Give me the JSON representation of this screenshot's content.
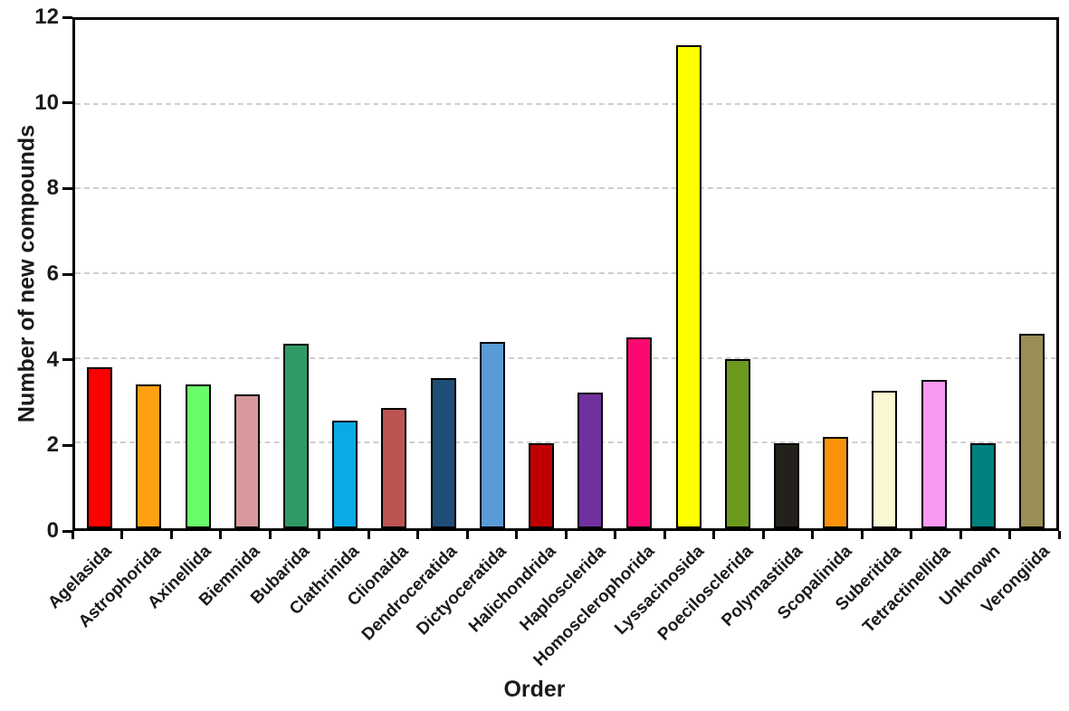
{
  "chart_data": {
    "type": "bar",
    "title": "",
    "xlabel": "Order",
    "ylabel": "Number of new compounds",
    "ylim": [
      0,
      12
    ],
    "yticks": [
      0,
      2,
      4,
      6,
      8,
      10,
      12
    ],
    "gridlines_at": [
      2,
      4,
      6,
      8,
      10
    ],
    "grid_style": "dashed",
    "legend": "none",
    "categories": [
      "Agelasida",
      "Astrophorida",
      "Axinellida",
      "Biemnida",
      "Bubarida",
      "Clathrinida",
      "Clionaida",
      "Dendroceratida",
      "Dictyoceratida",
      "Halichondrida",
      "Haplosclerida",
      "Homosclerophorida",
      "Lyssacinosida",
      "Poecilosclerida",
      "Polymastiida",
      "Scopalinida",
      "Suberitida",
      "Tetractinellida",
      "Unknown",
      "Verongiida"
    ],
    "values": [
      3.8,
      3.4,
      3.4,
      3.15,
      4.35,
      2.55,
      2.85,
      3.55,
      4.4,
      2.0,
      3.2,
      4.5,
      11.4,
      4.0,
      2.0,
      2.15,
      3.25,
      3.5,
      2.0,
      4.6
    ],
    "bar_colors": [
      "#FF0000",
      "#FFA013",
      "#69FB69",
      "#D8989B",
      "#2F9A66",
      "#0AAAE6",
      "#BC5451",
      "#1F4E78",
      "#5B9BD5",
      "#C00000",
      "#7030A0",
      "#FA0A70",
      "#FFFF00",
      "#6C9A1E",
      "#24211C",
      "#FA9309",
      "#FAF8D2",
      "#F89AF2",
      "#00807E",
      "#9A8D55"
    ],
    "styles": {
      "bar_border": "#000000",
      "frame_color": "#000000",
      "grid_color": "#cfcfcf",
      "text_color": "#1a1a1a",
      "background": "#ffffff"
    }
  }
}
